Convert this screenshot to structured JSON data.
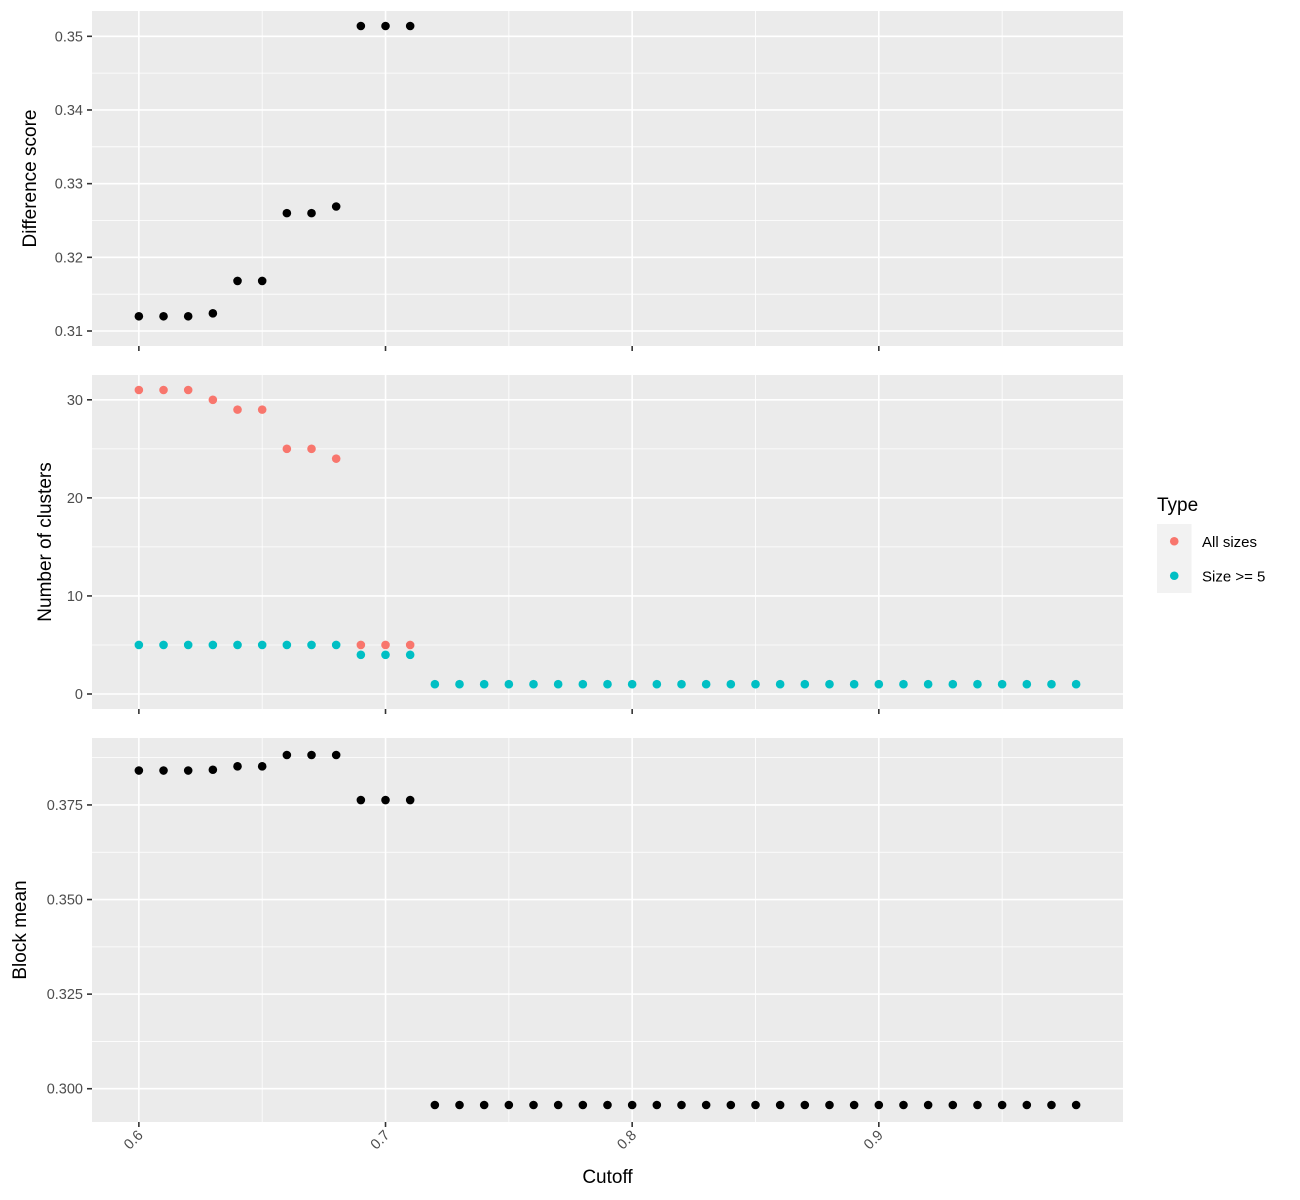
{
  "chart_data": {
    "type": "scatter",
    "xlabel": "Cutoff",
    "xlim": [
      0.581,
      0.999
    ],
    "x_ticks": [
      0.6,
      0.7,
      0.8,
      0.9
    ],
    "x_tick_labels": [
      "0.6",
      "0.7",
      "0.8",
      "0.9"
    ],
    "x_tick_label_rotation": 45,
    "grid": true,
    "legend": {
      "title": "Type",
      "placement": "right",
      "entries": [
        {
          "name": "All sizes",
          "color": "#F8766D"
        },
        {
          "name": "Size >= 5",
          "color": "#00BFC4"
        }
      ]
    },
    "panels": [
      {
        "ylabel": "Difference score",
        "ylim": [
          0.31,
          0.3514
        ],
        "y_ticks": [
          0.31,
          0.32,
          0.33,
          0.34,
          0.35
        ],
        "y_tick_labels": [
          "0.31",
          "0.32",
          "0.33",
          "0.34",
          "0.35"
        ],
        "series": [
          {
            "color": "#000000",
            "x": [
              0.6,
              0.61,
              0.62,
              0.63,
              0.64,
              0.65,
              0.66,
              0.67,
              0.68,
              0.69,
              0.7,
              0.71
            ],
            "y": [
              0.312,
              0.312,
              0.312,
              0.3124,
              0.3168,
              0.3168,
              0.326,
              0.326,
              0.3269,
              0.3514,
              0.3514,
              0.3514
            ]
          }
        ]
      },
      {
        "ylabel": "Number of clusters",
        "ylim": [
          0,
          31
        ],
        "y_ticks": [
          0,
          10,
          20,
          30
        ],
        "y_tick_labels": [
          "0",
          "10",
          "20",
          "30"
        ],
        "series": [
          {
            "name": "All sizes",
            "color": "#F8766D",
            "x": [
              0.6,
              0.61,
              0.62,
              0.63,
              0.64,
              0.65,
              0.66,
              0.67,
              0.68,
              0.69,
              0.7,
              0.71
            ],
            "y": [
              31,
              31,
              31,
              30,
              29,
              29,
              25,
              25,
              24,
              5,
              5,
              5
            ]
          },
          {
            "name": "Size >= 5",
            "color": "#00BFC4",
            "x": [
              0.6,
              0.61,
              0.62,
              0.63,
              0.64,
              0.65,
              0.66,
              0.67,
              0.68,
              0.69,
              0.7,
              0.71,
              0.72,
              0.73,
              0.74,
              0.75,
              0.76,
              0.77,
              0.78,
              0.79,
              0.8,
              0.81,
              0.82,
              0.83,
              0.84,
              0.85,
              0.86,
              0.87,
              0.88,
              0.89,
              0.9,
              0.91,
              0.92,
              0.93,
              0.94,
              0.95,
              0.96,
              0.97,
              0.98
            ],
            "y": [
              5,
              5,
              5,
              5,
              5,
              5,
              5,
              5,
              5,
              4,
              4,
              4,
              1,
              1,
              1,
              1,
              1,
              1,
              1,
              1,
              1,
              1,
              1,
              1,
              1,
              1,
              1,
              1,
              1,
              1,
              1,
              1,
              1,
              1,
              1,
              1,
              1,
              1,
              1
            ]
          }
        ]
      },
      {
        "ylabel": "Block mean",
        "ylim": [
          0.2957,
          0.3882
        ],
        "y_ticks": [
          0.3,
          0.325,
          0.35,
          0.375
        ],
        "y_tick_labels": [
          "0.300",
          "0.325",
          "0.350",
          "0.375"
        ],
        "series": [
          {
            "color": "#000000",
            "x": [
              0.6,
              0.61,
              0.62,
              0.63,
              0.64,
              0.65,
              0.66,
              0.67,
              0.68,
              0.69,
              0.7,
              0.71,
              0.72,
              0.73,
              0.74,
              0.75,
              0.76,
              0.77,
              0.78,
              0.79,
              0.8,
              0.81,
              0.82,
              0.83,
              0.84,
              0.85,
              0.86,
              0.87,
              0.88,
              0.89,
              0.9,
              0.91,
              0.92,
              0.93,
              0.94,
              0.95,
              0.96,
              0.97,
              0.98
            ],
            "y": [
              0.3841,
              0.3841,
              0.3841,
              0.3843,
              0.3852,
              0.3852,
              0.3882,
              0.3882,
              0.3882,
              0.3763,
              0.3763,
              0.3763,
              0.2957,
              0.2957,
              0.2957,
              0.2957,
              0.2957,
              0.2957,
              0.2957,
              0.2957,
              0.2957,
              0.2957,
              0.2957,
              0.2957,
              0.2957,
              0.2957,
              0.2957,
              0.2957,
              0.2957,
              0.2957,
              0.2957,
              0.2957,
              0.2957,
              0.2957,
              0.2957,
              0.2957,
              0.2957,
              0.2957,
              0.2957
            ]
          }
        ]
      }
    ]
  }
}
